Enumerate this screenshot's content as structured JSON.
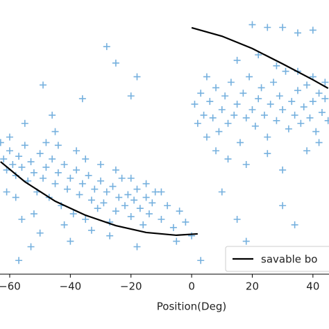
{
  "chart_data": {
    "type": "scatter",
    "xlabel": "Position(Deg)",
    "xlim": [
      -63.2,
      45.3
    ],
    "ylim": [
      0,
      100
    ],
    "xticks": [
      {
        "value": -60,
        "label": "−60"
      },
      {
        "value": -40,
        "label": "−40"
      },
      {
        "value": -20,
        "label": "−20"
      },
      0,
      20,
      40
    ],
    "legend": "lower right",
    "series": [
      {
        "name": "savable bo",
        "type": "line",
        "color": "#000000",
        "x": [
          -63,
          -55,
          -45,
          -35,
          -25,
          -15,
          -5,
          2,
          null,
          0,
          10,
          20,
          30,
          40,
          45
        ],
        "y": [
          41.0,
          33.7,
          26.6,
          21.5,
          17.7,
          15.2,
          14.2,
          14.7,
          null,
          89.9,
          86.8,
          82.3,
          76.7,
          70.9,
          67.8
        ]
      },
      {
        "type": "scatter",
        "color": "#3a8fd0",
        "x": [
          -62,
          -61,
          -60,
          -59,
          -58,
          -57,
          -56,
          -55,
          -54,
          -53,
          -52,
          -51,
          -50,
          -49,
          -48,
          -47,
          -46,
          -45,
          -44,
          -43,
          -42,
          -41,
          -40,
          -39,
          -38,
          -37,
          -36,
          -35,
          -34,
          -33,
          -32,
          -31,
          -30,
          -29,
          -28,
          -27,
          -26,
          -25,
          -24,
          -23,
          -22,
          -21,
          -20,
          -19,
          -18,
          -17,
          -16,
          -15,
          -14,
          -13,
          -12,
          -10,
          -8,
          -6,
          -4,
          -2,
          -60,
          -58,
          -55,
          -52,
          -50,
          -48,
          -45,
          -42,
          -40,
          -38,
          -35,
          -30,
          -25,
          -20,
          -15,
          -10,
          -5,
          -57,
          -53,
          -46,
          -36,
          -27,
          -18,
          -63,
          -61,
          -56,
          -44,
          -33,
          -28,
          -25,
          -18,
          -49,
          -20,
          1,
          2,
          3,
          4,
          5,
          6,
          7,
          8,
          9,
          10,
          11,
          12,
          13,
          14,
          15,
          16,
          17,
          18,
          19,
          20,
          21,
          22,
          23,
          24,
          25,
          26,
          27,
          28,
          29,
          30,
          31,
          32,
          33,
          34,
          35,
          36,
          37,
          38,
          39,
          40,
          41,
          42,
          43,
          44,
          45,
          8,
          12,
          18,
          25,
          30,
          38,
          42,
          5,
          15,
          22,
          28,
          35,
          40,
          44,
          20,
          25,
          30,
          35,
          40,
          10,
          15,
          18,
          30,
          34,
          3,
          0
        ],
        "y": [
          42,
          38,
          45,
          40,
          36,
          43,
          39,
          47,
          34,
          41,
          37,
          30,
          44,
          35,
          39,
          28,
          42,
          33,
          37,
          25,
          40,
          31,
          35,
          22,
          38,
          29,
          33,
          20,
          36,
          27,
          31,
          24,
          34,
          26,
          30,
          19,
          32,
          23,
          28,
          35,
          25,
          29,
          21,
          27,
          31,
          24,
          18,
          28,
          22,
          26,
          30,
          20,
          25,
          17,
          23,
          19,
          50,
          28,
          55,
          22,
          15,
          48,
          52,
          18,
          12,
          45,
          42,
          40,
          38,
          35,
          33,
          30,
          12,
          5,
          10,
          58,
          64,
          14,
          10,
          48,
          30,
          20,
          47,
          16,
          83,
          77,
          72,
          69,
          65,
          62,
          55,
          66,
          58,
          50,
          63,
          57,
          68,
          52,
          60,
          65,
          55,
          70,
          58,
          62,
          48,
          66,
          57,
          72,
          60,
          54,
          64,
          68,
          58,
          50,
          62,
          70,
          56,
          65,
          60,
          74,
          53,
          63,
          58,
          67,
          55,
          61,
          69,
          57,
          63,
          52,
          66,
          59,
          64,
          56,
          45,
          42,
          40,
          44,
          38,
          45,
          48,
          72,
          78,
          80,
          76,
          74,
          72,
          70,
          91,
          90,
          90,
          88,
          89,
          30,
          20,
          12,
          25,
          18,
          5,
          14
        ]
      }
    ]
  }
}
